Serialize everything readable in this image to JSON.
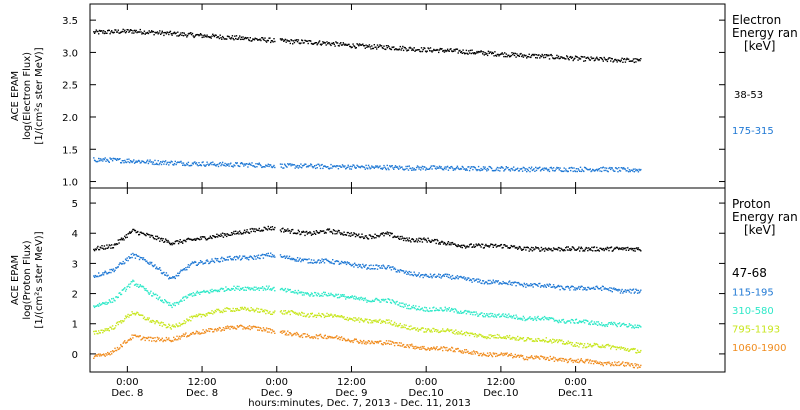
{
  "chart_data": [
    {
      "type": "scatter",
      "panel": "electron",
      "ylabel_lines": [
        "ACE EPAM",
        "log(Electron Flux)",
        "[1/(cm²s ster MeV)]"
      ],
      "legend_title_lines": [
        "Electron",
        "Energy ran",
        "[keV]"
      ],
      "ylim": [
        0.9,
        3.75
      ],
      "yticks": [
        "1.0",
        "1.5",
        "2.0",
        "2.5",
        "3.0",
        "3.5"
      ],
      "ytick_values": [
        1.0,
        1.5,
        2.0,
        2.5,
        3.0,
        3.5
      ],
      "grid": false,
      "legend_position": "right",
      "series": [
        {
          "name": "38-53",
          "color": "#000000",
          "values": [
            3.32,
            3.33,
            3.34,
            3.32,
            3.3,
            3.28,
            3.26,
            3.24,
            3.22,
            3.2,
            3.18,
            3.17,
            3.15,
            3.12,
            3.1,
            3.09,
            3.07,
            3.05,
            3.04,
            3.02,
            3.0,
            2.98,
            2.96,
            2.95,
            2.93,
            2.91,
            2.9,
            2.89,
            2.88
          ]
        },
        {
          "name": "175-315",
          "color": "#1f78d4",
          "values": [
            1.35,
            1.34,
            1.33,
            1.31,
            1.3,
            1.29,
            1.28,
            1.27,
            1.27,
            1.26,
            1.25,
            1.25,
            1.24,
            1.24,
            1.23,
            1.23,
            1.22,
            1.22,
            1.22,
            1.21,
            1.21,
            1.21,
            1.2,
            1.2,
            1.2,
            1.2,
            1.2,
            1.19,
            1.19
          ]
        }
      ]
    },
    {
      "type": "scatter",
      "panel": "proton",
      "ylabel_lines": [
        "ACE EPAM",
        "log(Proton Flux)",
        "[1/(cm²s ster MeV)]"
      ],
      "legend_title_lines": [
        "Proton",
        "Energy ran",
        "[keV]"
      ],
      "ylim": [
        -0.6,
        5.5
      ],
      "yticks": [
        "0",
        "1",
        "2",
        "3",
        "4",
        "5"
      ],
      "ytick_values": [
        0,
        1,
        2,
        3,
        4,
        5
      ],
      "grid": false,
      "legend_position": "right",
      "series": [
        {
          "name": "47-68",
          "color": "#000000",
          "values": [
            3.5,
            3.6,
            4.1,
            3.9,
            3.7,
            3.8,
            3.9,
            4.0,
            4.1,
            4.2,
            4.1,
            4.0,
            4.1,
            4.0,
            3.9,
            4.0,
            3.8,
            3.8,
            3.7,
            3.6,
            3.6,
            3.6,
            3.5,
            3.5,
            3.5,
            3.5,
            3.5,
            3.5,
            3.5
          ]
        },
        {
          "name": "115-195",
          "color": "#1f78d4",
          "values": [
            2.6,
            2.8,
            3.3,
            3.0,
            2.5,
            3.0,
            3.1,
            3.2,
            3.2,
            3.3,
            3.2,
            3.1,
            3.1,
            3.0,
            2.9,
            2.9,
            2.7,
            2.6,
            2.6,
            2.5,
            2.4,
            2.4,
            2.3,
            2.3,
            2.2,
            2.2,
            2.2,
            2.1,
            2.1
          ]
        },
        {
          "name": "310-580",
          "color": "#2ee8c8",
          "values": [
            1.6,
            1.8,
            2.4,
            2.0,
            1.6,
            2.0,
            2.1,
            2.2,
            2.2,
            2.2,
            2.1,
            2.0,
            2.0,
            1.9,
            1.8,
            1.8,
            1.6,
            1.5,
            1.5,
            1.4,
            1.3,
            1.3,
            1.2,
            1.2,
            1.1,
            1.1,
            1.0,
            1.0,
            0.9
          ]
        },
        {
          "name": "795-1193",
          "color": "#c8e61e",
          "values": [
            0.7,
            0.9,
            1.4,
            1.1,
            0.9,
            1.2,
            1.4,
            1.5,
            1.5,
            1.4,
            1.4,
            1.3,
            1.3,
            1.2,
            1.1,
            1.1,
            0.9,
            0.8,
            0.8,
            0.7,
            0.6,
            0.6,
            0.5,
            0.5,
            0.4,
            0.3,
            0.3,
            0.2,
            0.1
          ]
        },
        {
          "name": "1060-1900",
          "color": "#f08c1e",
          "values": [
            -0.1,
            0.1,
            0.6,
            0.5,
            0.5,
            0.7,
            0.8,
            0.9,
            0.9,
            0.8,
            0.7,
            0.6,
            0.6,
            0.5,
            0.4,
            0.4,
            0.3,
            0.2,
            0.2,
            0.1,
            0.0,
            0.0,
            -0.1,
            -0.1,
            -0.2,
            -0.2,
            -0.3,
            -0.3,
            -0.4
          ]
        }
      ]
    }
  ],
  "x_axis": {
    "range_hours": [
      -6,
      96
    ],
    "series_start_hour": -5.5,
    "series_end_hour": 82.5,
    "ticks": [
      {
        "hour": 0,
        "time": "0:00",
        "date": "Dec. 8"
      },
      {
        "hour": 12,
        "time": "12:00",
        "date": "Dec. 8"
      },
      {
        "hour": 24,
        "time": "0:00",
        "date": "Dec. 9"
      },
      {
        "hour": 36,
        "time": "12:00",
        "date": "Dec. 9"
      },
      {
        "hour": 48,
        "time": "0:00",
        "date": "Dec.10"
      },
      {
        "hour": 60,
        "time": "12:00",
        "date": "Dec.10"
      },
      {
        "hour": 72,
        "time": "0:00",
        "date": "Dec.11"
      }
    ],
    "xlabel": "hours:minutes, Dec. 7, 2013 - Dec. 11, 2013"
  }
}
